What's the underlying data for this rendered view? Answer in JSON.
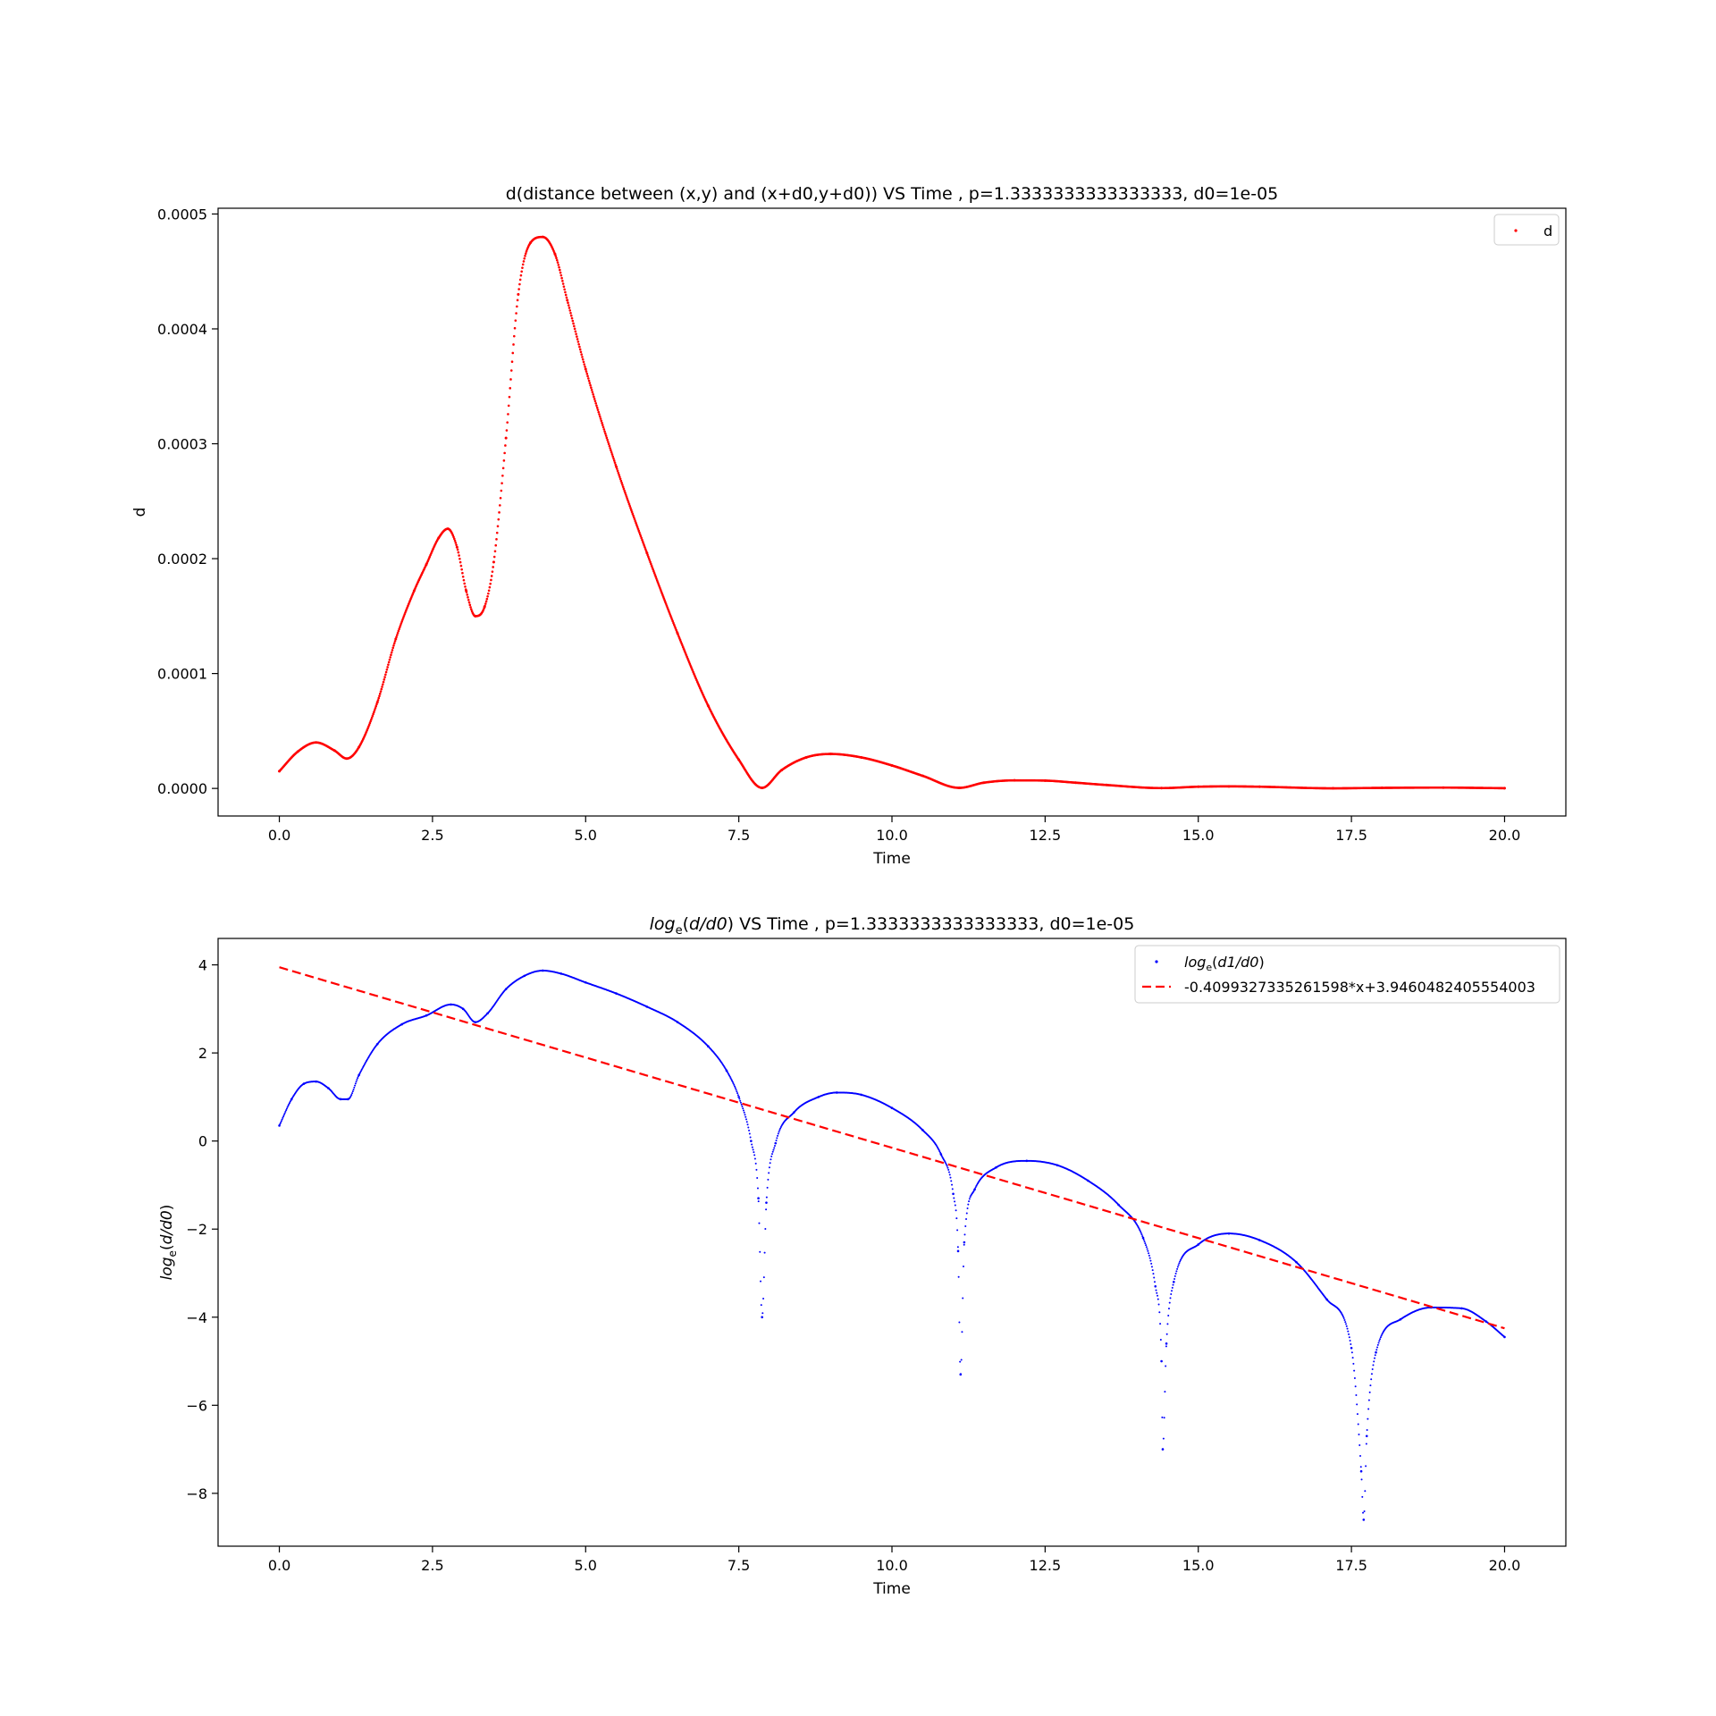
{
  "chart_data": [
    {
      "type": "scatter",
      "title": "d(distance between (x,y) and (x+d0,y+d0))  VS Time , p=1.3333333333333333, d0=1e-05",
      "xlabel": "Time",
      "ylabel": "d",
      "xlim": [
        -1.0,
        21.0
      ],
      "ylim": [
        -2.4e-05,
        0.000505
      ],
      "xticks": [
        0,
        2.5,
        5,
        7.5,
        10,
        12.5,
        15,
        17.5,
        20
      ],
      "xtick_labels": [
        "0.0",
        "2.5",
        "5.0",
        "7.5",
        "10.0",
        "12.5",
        "15.0",
        "17.5",
        "20.0"
      ],
      "yticks": [
        0,
        0.0001,
        0.0002,
        0.0003,
        0.0004,
        0.0005
      ],
      "ytick_labels": [
        "0.0000",
        "0.0001",
        "0.0002",
        "0.0003",
        "0.0004",
        "0.0005"
      ],
      "grid": false,
      "legend_position": "top-right",
      "colors": {
        "d": "#ff0000"
      },
      "series": [
        {
          "name": "d",
          "style": "points",
          "x": [
            0,
            0.3,
            0.6,
            0.9,
            1.1,
            1.3,
            1.6,
            1.9,
            2.2,
            2.4,
            2.6,
            2.75,
            2.9,
            3.05,
            3.2,
            3.35,
            3.5,
            3.7,
            3.9,
            4.1,
            4.3,
            4.5,
            4.7,
            5.0,
            5.5,
            6.0,
            6.5,
            7.0,
            7.5,
            7.88,
            8.2,
            8.6,
            9.0,
            9.5,
            10.0,
            10.5,
            11.1,
            11.5,
            12.0,
            12.5,
            13.0,
            13.5,
            14.4,
            15.0,
            15.5,
            16.0,
            17.2,
            18.0,
            19.0,
            20.0
          ],
          "y": [
            1.5e-05,
            3.2e-05,
            4e-05,
            3.3e-05,
            2.6e-05,
            3.6e-05,
            7.5e-05,
            0.00013,
            0.000172,
            0.000195,
            0.000218,
            0.000226,
            0.00021,
            0.000172,
            0.00015,
            0.000158,
            0.000197,
            0.000305,
            0.00043,
            0.000475,
            0.00048,
            0.000465,
            0.000425,
            0.000365,
            0.00028,
            0.000205,
            0.000135,
            7.2e-05,
            2.5e-05,
            5e-07,
            1.6e-05,
            2.7e-05,
            3e-05,
            2.7e-05,
            2e-05,
            1.1e-05,
            5e-07,
            5e-06,
            7e-06,
            6.8e-06,
            5e-06,
            3e-06,
            3e-07,
            1.5e-06,
            1.8e-06,
            1.5e-06,
            1e-07,
            5e-07,
            7e-07,
            2e-07
          ]
        }
      ]
    },
    {
      "type": "scatter",
      "title": "log_e(d/d0) VS Time , p=1.3333333333333333, d0=1e-05",
      "xlabel": "Time",
      "ylabel": "log_e(d/d0)",
      "xlim": [
        -1.0,
        21.0
      ],
      "ylim": [
        -9.2,
        4.6
      ],
      "xticks": [
        0,
        2.5,
        5,
        7.5,
        10,
        12.5,
        15,
        17.5,
        20
      ],
      "xtick_labels": [
        "0.0",
        "2.5",
        "5.0",
        "7.5",
        "10.0",
        "12.5",
        "15.0",
        "17.5",
        "20.0"
      ],
      "yticks": [
        4,
        2,
        0,
        -2,
        -4,
        -6,
        -8
      ],
      "ytick_labels": [
        "4",
        "2",
        "0",
        "−2",
        "−4",
        "−6",
        "−8"
      ],
      "grid": false,
      "legend_position": "top-right",
      "colors": {
        "log": "#0000ff",
        "fit": "#ff0000"
      },
      "series": [
        {
          "name": "log_e(d1/d0)",
          "style": "points",
          "x": [
            0,
            0.2,
            0.4,
            0.6,
            0.8,
            1.0,
            1.12,
            1.3,
            1.6,
            2.0,
            2.4,
            2.8,
            3.0,
            3.2,
            3.4,
            3.7,
            4.0,
            4.3,
            4.6,
            5.0,
            5.5,
            6.0,
            6.5,
            7.0,
            7.3,
            7.5,
            7.7,
            7.82,
            7.88,
            7.95,
            8.1,
            8.4,
            8.8,
            9.1,
            9.5,
            10.0,
            10.5,
            10.8,
            11.0,
            11.08,
            11.12,
            11.18,
            11.35,
            11.7,
            12.2,
            12.7,
            13.2,
            13.7,
            14.1,
            14.3,
            14.4,
            14.42,
            14.48,
            14.6,
            15.0,
            15.5,
            16.0,
            16.6,
            17.1,
            17.5,
            17.66,
            17.7,
            17.75,
            17.9,
            18.3,
            18.8,
            19.3,
            19.7,
            20.0
          ],
          "y": [
            0.35,
            0.95,
            1.3,
            1.35,
            1.2,
            0.95,
            0.95,
            1.5,
            2.2,
            2.65,
            2.85,
            3.1,
            3.0,
            2.7,
            2.9,
            3.45,
            3.75,
            3.87,
            3.8,
            3.6,
            3.35,
            3.05,
            2.7,
            2.15,
            1.6,
            1.0,
            0.0,
            -1.3,
            -4.0,
            -1.4,
            -0.05,
            0.65,
            1.0,
            1.1,
            1.05,
            0.75,
            0.25,
            -0.3,
            -1.2,
            -2.5,
            -5.3,
            -2.3,
            -1.1,
            -0.6,
            -0.45,
            -0.55,
            -0.9,
            -1.45,
            -2.2,
            -3.3,
            -5.0,
            -7.0,
            -4.6,
            -3.2,
            -2.35,
            -2.1,
            -2.25,
            -2.75,
            -3.6,
            -4.7,
            -7.5,
            -8.6,
            -6.7,
            -4.8,
            -4.05,
            -3.78,
            -3.8,
            -4.1,
            -4.45
          ]
        },
        {
          "name": "-0.4099327335261598*x+3.9460482405554003",
          "style": "dashed-line",
          "slope": -0.4099327335261598,
          "intercept": 3.9460482405554003,
          "x": [
            0,
            20
          ]
        }
      ]
    }
  ]
}
